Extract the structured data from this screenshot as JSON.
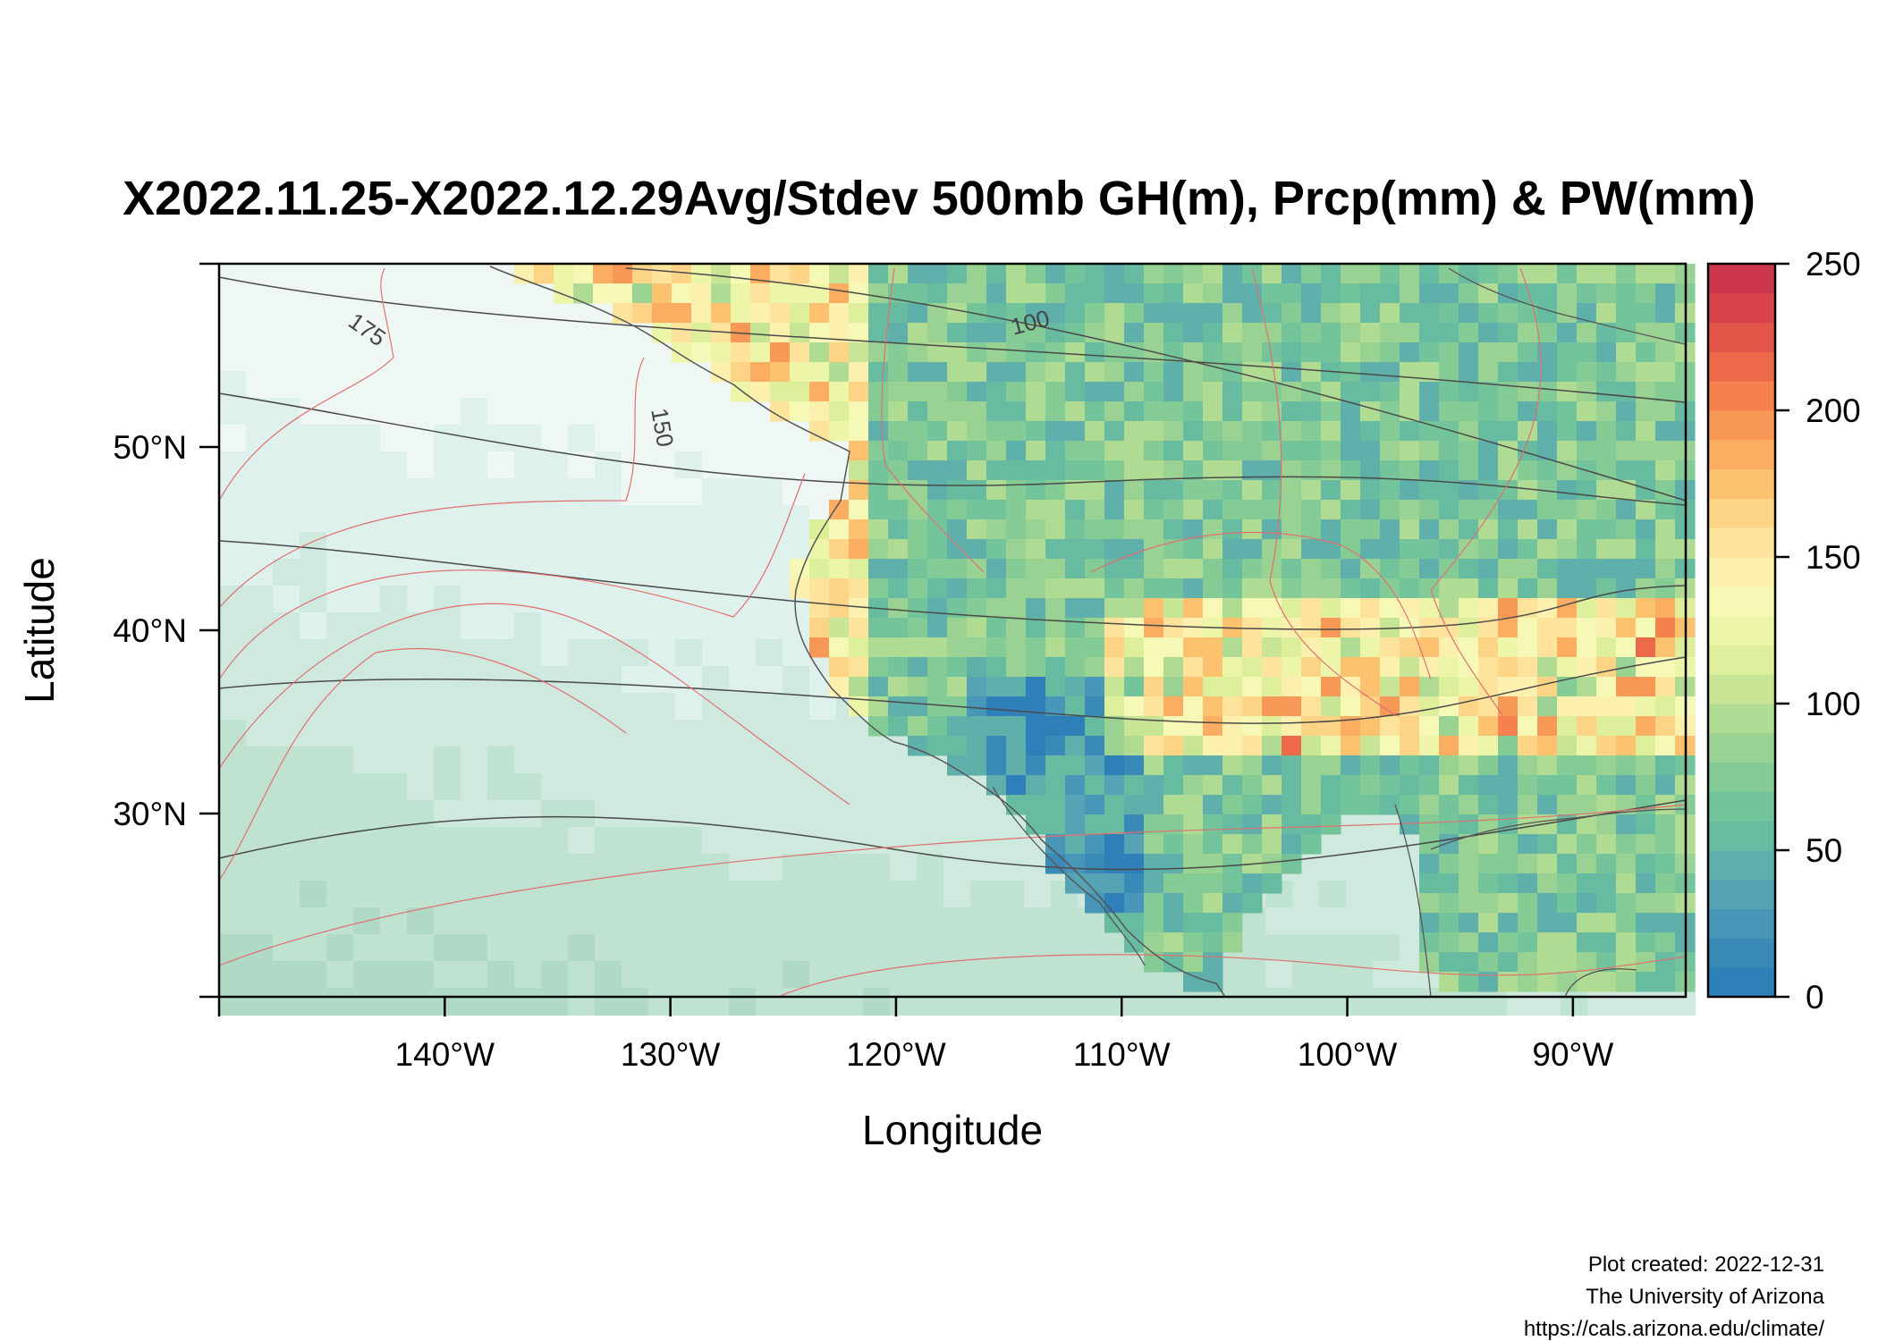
{
  "title": "X2022.11.25-X2022.12.29Avg/Stdev 500mb GH(m), Prcp(mm) & PW(mm)",
  "xlabel": "Longitude",
  "ylabel": "Latitude",
  "x_ticks": [
    "140°W",
    "130°W",
    "120°W",
    "110°W",
    "100°W",
    "90°W"
  ],
  "y_ticks": [
    "30°N",
    "40°N",
    "50°N"
  ],
  "colorbar": {
    "ticks": [
      "0",
      "50",
      "100",
      "150",
      "200",
      "250"
    ],
    "min": 0,
    "max": 250,
    "colors": [
      "#2f7fb8",
      "#3a8ab8",
      "#4896b8",
      "#55a3b4",
      "#5fafab",
      "#67bba0",
      "#73c49a",
      "#85cb96",
      "#9ad293",
      "#b0db92",
      "#c8e596",
      "#ddef9b",
      "#edf5a9",
      "#f6f8b6",
      "#fbf0ad",
      "#fde39b",
      "#fdd486",
      "#fcc270",
      "#fbad61",
      "#f89857",
      "#f4814e",
      "#ec6a4a",
      "#e25549",
      "#d84449",
      "#cb364b"
    ]
  },
  "contour_labels": [
    "175",
    "150",
    "100"
  ],
  "credits": {
    "line1": "Plot created: 2022-12-31",
    "line2": "The University of Arizona",
    "line3": "https://cals.arizona.edu/climate/"
  },
  "map": {
    "lon_range": [
      -150,
      -85
    ],
    "lat_range": [
      20,
      60
    ],
    "ocean_colors": [
      "#eef7f4",
      "#dff1ec",
      "#cfe9df",
      "#bfe2d1",
      "#b0dac6"
    ],
    "land_base": "#7fb4c9"
  }
}
